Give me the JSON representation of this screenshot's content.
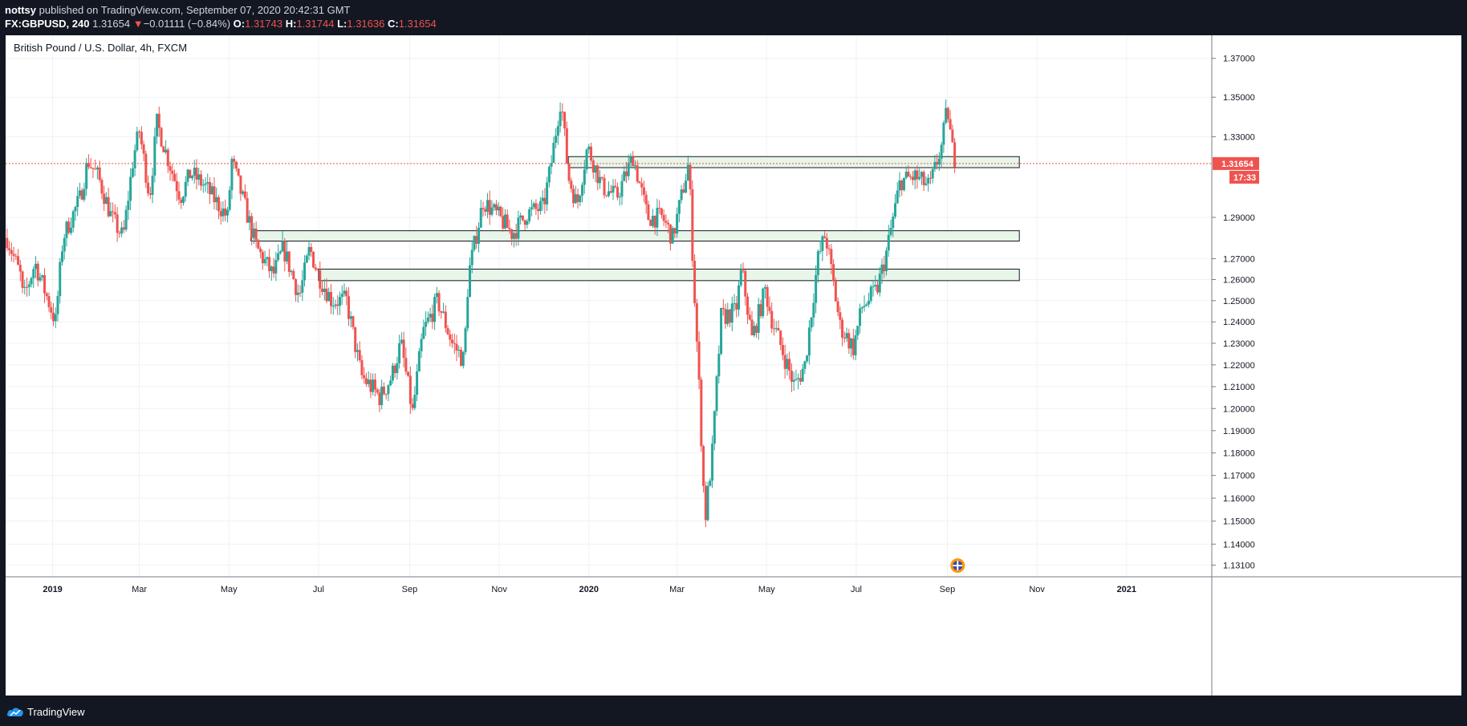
{
  "header": {
    "author": "nottsy",
    "published_text": "published on TradingView.com, September 07, 2020 20:42:31 GMT",
    "symbol": "FX:GBPUSD, 240",
    "last": "1.31654",
    "change_arrow": "▼",
    "change": "−0.01111 (−0.84%)",
    "open_label": "O:",
    "open": "1.31743",
    "high_label": "H:",
    "high": "1.31744",
    "low_label": "L:",
    "low": "1.31636",
    "close_label": "C:",
    "close": "1.31654"
  },
  "footer": {
    "brand": "TradingView"
  },
  "colors": {
    "up": "#26a69a",
    "down": "#ef5350",
    "zone_fill": "#e8f5e9",
    "price_tag": "#ef5350",
    "grid": "#eef1f6"
  },
  "chart_data": {
    "type": "candlestick",
    "title": "British Pound / U.S. Dollar, 4h, FXCM",
    "y_ticks": [
      "1.37000",
      "1.35000",
      "1.33000",
      "1.29000",
      "1.27000",
      "1.26000",
      "1.25000",
      "1.24000",
      "1.23000",
      "1.22000",
      "1.21000",
      "1.20000",
      "1.19000",
      "1.18000",
      "1.17000",
      "1.16000",
      "1.15000",
      "1.14000",
      "1.13100"
    ],
    "x_ticks": [
      "2019",
      "Mar",
      "May",
      "Jul",
      "Sep",
      "Nov",
      "2020",
      "Mar",
      "May",
      "Jul",
      "Sep",
      "Nov",
      "2021"
    ],
    "price_path": [
      [
        "2018-12-01",
        1.28
      ],
      [
        "2018-12-10",
        1.262
      ],
      [
        "2018-12-12",
        1.25
      ],
      [
        "2018-12-20",
        1.268
      ],
      [
        "2019-01-03",
        1.24
      ],
      [
        "2019-01-08",
        1.28
      ],
      [
        "2019-01-20",
        1.3
      ],
      [
        "2019-01-25",
        1.318
      ],
      [
        "2019-02-01",
        1.31
      ],
      [
        "2019-02-10",
        1.29
      ],
      [
        "2019-02-18",
        1.28
      ],
      [
        "2019-02-25",
        1.32
      ],
      [
        "2019-03-01",
        1.333
      ],
      [
        "2019-03-08",
        1.3
      ],
      [
        "2019-03-13",
        1.337
      ],
      [
        "2019-03-20",
        1.32
      ],
      [
        "2019-03-29",
        1.3
      ],
      [
        "2019-04-05",
        1.312
      ],
      [
        "2019-04-15",
        1.305
      ],
      [
        "2019-04-30",
        1.29
      ],
      [
        "2019-05-03",
        1.318
      ],
      [
        "2019-05-10",
        1.3
      ],
      [
        "2019-05-20",
        1.275
      ],
      [
        "2019-05-31",
        1.262
      ],
      [
        "2019-06-07",
        1.275
      ],
      [
        "2019-06-18",
        1.252
      ],
      [
        "2019-06-25",
        1.275
      ],
      [
        "2019-07-01",
        1.262
      ],
      [
        "2019-07-10",
        1.25
      ],
      [
        "2019-07-20",
        1.25
      ],
      [
        "2019-07-30",
        1.215
      ],
      [
        "2019-08-12",
        1.205
      ],
      [
        "2019-08-20",
        1.215
      ],
      [
        "2019-08-26",
        1.23
      ],
      [
        "2019-09-03",
        1.198
      ],
      [
        "2019-09-10",
        1.235
      ],
      [
        "2019-09-20",
        1.25
      ],
      [
        "2019-09-30",
        1.23
      ],
      [
        "2019-10-08",
        1.222
      ],
      [
        "2019-10-11",
        1.262
      ],
      [
        "2019-10-21",
        1.298
      ],
      [
        "2019-11-01",
        1.29
      ],
      [
        "2019-11-10",
        1.282
      ],
      [
        "2019-11-20",
        1.292
      ],
      [
        "2019-12-01",
        1.295
      ],
      [
        "2019-12-06",
        1.315
      ],
      [
        "2019-12-13",
        1.35
      ],
      [
        "2019-12-18",
        1.31
      ],
      [
        "2019-12-24",
        1.296
      ],
      [
        "2019-12-31",
        1.325
      ],
      [
        "2020-01-10",
        1.305
      ],
      [
        "2020-01-20",
        1.3
      ],
      [
        "2020-01-31",
        1.32
      ],
      [
        "2020-02-10",
        1.29
      ],
      [
        "2020-02-20",
        1.29
      ],
      [
        "2020-02-27",
        1.28
      ],
      [
        "2020-03-04",
        1.3
      ],
      [
        "2020-03-09",
        1.317
      ],
      [
        "2020-03-12",
        1.265
      ],
      [
        "2020-03-16",
        1.21
      ],
      [
        "2020-03-20",
        1.15
      ],
      [
        "2020-03-25",
        1.18
      ],
      [
        "2020-03-31",
        1.242
      ],
      [
        "2020-04-10",
        1.245
      ],
      [
        "2020-04-14",
        1.265
      ],
      [
        "2020-04-21",
        1.232
      ],
      [
        "2020-04-30",
        1.255
      ],
      [
        "2020-05-05",
        1.24
      ],
      [
        "2020-05-15",
        1.22
      ],
      [
        "2020-05-20",
        1.21
      ],
      [
        "2020-05-27",
        1.22
      ],
      [
        "2020-06-05",
        1.27
      ],
      [
        "2020-06-10",
        1.282
      ],
      [
        "2020-06-20",
        1.238
      ],
      [
        "2020-06-29",
        1.228
      ],
      [
        "2020-07-05",
        1.247
      ],
      [
        "2020-07-15",
        1.255
      ],
      [
        "2020-07-21",
        1.271
      ],
      [
        "2020-07-31",
        1.308
      ],
      [
        "2020-08-10",
        1.31
      ],
      [
        "2020-08-20",
        1.305
      ],
      [
        "2020-08-28",
        1.325
      ],
      [
        "2020-09-01",
        1.345
      ],
      [
        "2020-09-04",
        1.325
      ],
      [
        "2020-09-07",
        1.3165
      ]
    ],
    "price_range": [
      1.126,
      1.382
    ],
    "zones": [
      {
        "from": "2019-12-18",
        "to": "2020-10-20",
        "low": 1.3145,
        "high": 1.32
      },
      {
        "from": "2019-05-16",
        "to": "2020-10-20",
        "low": 1.2785,
        "high": 1.2835
      },
      {
        "from": "2019-07-01",
        "to": "2020-10-20",
        "low": 1.2595,
        "high": 1.265
      }
    ],
    "last_price": "1.31654",
    "countdown": "17:33"
  }
}
